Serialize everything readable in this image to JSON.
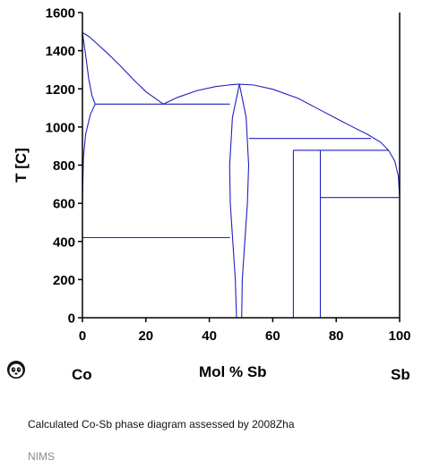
{
  "chart_data": {
    "type": "line",
    "title": "",
    "xlabel": "Mol % Sb",
    "ylabel": "T [C]",
    "xlim": [
      0,
      100
    ],
    "ylim": [
      0,
      1600
    ],
    "x_ticks": [
      "0",
      "20",
      "40",
      "60",
      "80",
      "100"
    ],
    "y_ticks": [
      "0",
      "200",
      "400",
      "600",
      "800",
      "1000",
      "1200",
      "1400",
      "1600"
    ],
    "left_component": "Co",
    "right_component": "Sb",
    "line_color": "#2020c0",
    "grid": false,
    "series": [
      {
        "x": [
          0,
          2,
          4,
          8,
          12,
          16,
          20,
          25.5
        ],
        "y": [
          1495,
          1475,
          1445,
          1385,
          1320,
          1250,
          1185,
          1120
        ]
      },
      {
        "x": [
          0,
          1,
          2,
          3,
          4
        ],
        "y": [
          1495,
          1380,
          1250,
          1165,
          1120
        ]
      },
      {
        "x": [
          25.5,
          30,
          36,
          42,
          47,
          49.5,
          54,
          60,
          68,
          76,
          84,
          90,
          94,
          96.5,
          98.5,
          99.6,
          100
        ],
        "y": [
          1120,
          1155,
          1190,
          1212,
          1222,
          1224,
          1220,
          1198,
          1150,
          1080,
          1010,
          960,
          920,
          878,
          820,
          740,
          630
        ]
      },
      {
        "x": [
          0,
          0.3,
          1,
          2.5,
          4
        ],
        "y": [
          600,
          840,
          960,
          1065,
          1120
        ]
      },
      {
        "x": [
          4,
          46.5
        ],
        "y": [
          1120,
          1120
        ]
      },
      {
        "x": [
          0,
          46.5
        ],
        "y": [
          420,
          420
        ]
      },
      {
        "x": [
          49.5,
          47.3,
          46.4,
          46.6,
          47.4,
          48.2,
          48.6
        ],
        "y": [
          1224,
          1050,
          800,
          600,
          400,
          200,
          0
        ]
      },
      {
        "x": [
          49.5,
          51.6,
          52.4,
          52.0,
          51.2,
          50.4,
          50.2
        ],
        "y": [
          1224,
          1050,
          800,
          600,
          400,
          200,
          0
        ]
      },
      {
        "x": [
          52.5,
          91
        ],
        "y": [
          940,
          940
        ]
      },
      {
        "x": [
          66.5,
          66.5
        ],
        "y": [
          0,
          878
        ]
      },
      {
        "x": [
          66.5,
          96.5
        ],
        "y": [
          878,
          878
        ]
      },
      {
        "x": [
          75,
          75
        ],
        "y": [
          0,
          878
        ]
      },
      {
        "x": [
          75,
          100
        ],
        "y": [
          630,
          630
        ]
      }
    ]
  },
  "labels": {
    "left_component": "Co",
    "axis_title": "Mol % Sb",
    "right_component": "Sb"
  },
  "icon": "panda-icon",
  "caption": "Calculated Co-Sb phase diagram assessed by 2008Zha",
  "source": "NIMS"
}
